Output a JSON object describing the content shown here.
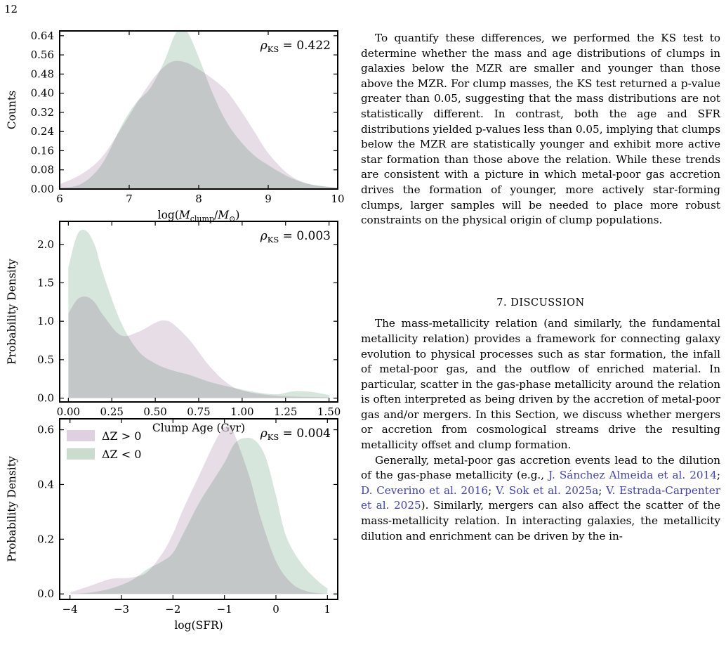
{
  "page": {
    "number": "12"
  },
  "colors": {
    "pos": "#d9c8d9",
    "neg": "#bfd6c6",
    "overlap": "#b6b8ac",
    "cite": "#3f3fbf"
  },
  "chart_data": [
    {
      "type": "area",
      "xlabel": "log(M_clump/M_⊙)",
      "ylabel": "Counts",
      "annotation": {
        "symbol": "ρ",
        "sub": "KS",
        "value": "= 0.422"
      },
      "xlim": [
        6,
        10
      ],
      "ylim": [
        0,
        0.66
      ],
      "xticks": [
        6,
        7,
        8,
        9,
        10
      ],
      "xtick_labels": [
        "6",
        "7",
        "8",
        "9",
        "10"
      ],
      "yticks": [
        0,
        0.08,
        0.16,
        0.24,
        0.32,
        0.4,
        0.48,
        0.56,
        0.64
      ],
      "ytick_labels": [
        "0.00",
        "0.08",
        "0.16",
        "0.24",
        "0.32",
        "0.40",
        "0.48",
        "0.56",
        "0.64"
      ],
      "series": [
        {
          "key": "pos",
          "x": [
            6.0,
            6.3,
            6.6,
            6.9,
            7.2,
            7.4,
            7.6,
            7.8,
            8.0,
            8.2,
            8.4,
            8.6,
            8.8,
            9.0,
            9.3,
            9.6,
            10.0
          ],
          "y": [
            0.02,
            0.06,
            0.13,
            0.26,
            0.4,
            0.48,
            0.53,
            0.53,
            0.5,
            0.46,
            0.41,
            0.33,
            0.24,
            0.15,
            0.06,
            0.02,
            0.005
          ]
        },
        {
          "key": "neg",
          "x": [
            6.0,
            6.3,
            6.6,
            6.9,
            7.1,
            7.3,
            7.5,
            7.65,
            7.75,
            7.85,
            8.0,
            8.2,
            8.4,
            8.6,
            8.8,
            9.0,
            9.3,
            9.6,
            10.0
          ],
          "y": [
            0.005,
            0.02,
            0.1,
            0.27,
            0.36,
            0.42,
            0.53,
            0.64,
            0.67,
            0.65,
            0.55,
            0.4,
            0.28,
            0.2,
            0.14,
            0.1,
            0.05,
            0.02,
            0.005
          ]
        }
      ]
    },
    {
      "type": "area",
      "xlabel": "Clump Age (Gyr)",
      "ylabel": "Probability Density",
      "annotation": {
        "symbol": "ρ",
        "sub": "KS",
        "value": "= 0.003"
      },
      "xlim": [
        -0.05,
        1.55
      ],
      "ylim": [
        -0.05,
        2.3
      ],
      "xticks": [
        0,
        0.25,
        0.5,
        0.75,
        1.0,
        1.25,
        1.5
      ],
      "xtick_labels": [
        "0.00",
        "0.25",
        "0.50",
        "0.75",
        "1.00",
        "1.25",
        "1.50"
      ],
      "yticks": [
        0,
        0.5,
        1.0,
        1.5,
        2.0
      ],
      "ytick_labels": [
        "0.0",
        "0.5",
        "1.0",
        "1.5",
        "2.0"
      ],
      "series": [
        {
          "key": "pos",
          "x": [
            0,
            0.05,
            0.1,
            0.15,
            0.2,
            0.3,
            0.4,
            0.5,
            0.55,
            0.6,
            0.7,
            0.8,
            0.9,
            1.0,
            1.2,
            1.5
          ],
          "y": [
            1.1,
            1.28,
            1.32,
            1.25,
            1.08,
            0.82,
            0.86,
            0.98,
            1.01,
            0.97,
            0.75,
            0.45,
            0.22,
            0.1,
            0.03,
            0.01
          ]
        },
        {
          "key": "neg",
          "x": [
            0,
            0.05,
            0.1,
            0.15,
            0.2,
            0.3,
            0.4,
            0.5,
            0.6,
            0.7,
            0.8,
            0.9,
            1.0,
            1.1,
            1.2,
            1.3,
            1.4,
            1.5
          ],
          "y": [
            1.7,
            2.12,
            2.18,
            2.0,
            1.62,
            1.0,
            0.62,
            0.45,
            0.36,
            0.3,
            0.22,
            0.16,
            0.11,
            0.07,
            0.05,
            0.09,
            0.08,
            0.04
          ]
        }
      ]
    },
    {
      "type": "area",
      "xlabel": "log(SFR)",
      "ylabel": "Probability Density",
      "annotation": {
        "symbol": "ρ",
        "sub": "KS",
        "value": "= 0.004"
      },
      "legend": {
        "position": "top-left",
        "entries": [
          {
            "key": "pos",
            "label": "ΔZ > 0"
          },
          {
            "key": "neg",
            "label": "ΔZ < 0"
          }
        ]
      },
      "xlim": [
        -4.2,
        1.2
      ],
      "ylim": [
        -0.02,
        0.64
      ],
      "xticks": [
        -4,
        -3,
        -2,
        -1,
        0,
        1
      ],
      "xtick_labels": [
        "−4",
        "−3",
        "−2",
        "−1",
        "0",
        "1"
      ],
      "yticks": [
        0,
        0.2,
        0.4,
        0.6
      ],
      "ytick_labels": [
        "0.0",
        "0.2",
        "0.4",
        "0.6"
      ],
      "series": [
        {
          "key": "pos",
          "x": [
            -4.0,
            -3.6,
            -3.2,
            -2.8,
            -2.5,
            -2.2,
            -2.0,
            -1.8,
            -1.5,
            -1.2,
            -1.0,
            -0.85,
            -0.7,
            -0.5,
            -0.3,
            0.0,
            0.3,
            0.6,
            1.0
          ],
          "y": [
            0.005,
            0.03,
            0.055,
            0.06,
            0.08,
            0.15,
            0.22,
            0.31,
            0.43,
            0.55,
            0.61,
            0.6,
            0.53,
            0.42,
            0.28,
            0.12,
            0.04,
            0.01,
            0.0
          ]
        },
        {
          "key": "neg",
          "x": [
            -4.0,
            -3.6,
            -3.2,
            -2.8,
            -2.5,
            -2.2,
            -2.0,
            -1.8,
            -1.5,
            -1.2,
            -1.0,
            -0.8,
            -0.6,
            -0.4,
            -0.2,
            0.0,
            0.2,
            0.5,
            0.8,
            1.0
          ],
          "y": [
            0.0,
            0.005,
            0.02,
            0.05,
            0.09,
            0.12,
            0.15,
            0.22,
            0.33,
            0.42,
            0.48,
            0.55,
            0.57,
            0.56,
            0.5,
            0.36,
            0.21,
            0.11,
            0.05,
            0.02
          ]
        }
      ]
    }
  ],
  "text": {
    "para1": "To quantify these differences, we performed the KS test to determine whether the mass and age distributions of clumps in galaxies below the MZR are smaller and younger than those above the MZR. For clump masses, the KS test returned a p-value greater than 0.05, suggesting that the mass distributions are not statistically different. In contrast, both the age and SFR distributions yielded p-values less than 0.05, implying that clumps below the MZR are statistically younger and exhibit more active star formation than those above the relation. While these trends are consistent with a picture in which metal-poor gas accretion drives the formation of younger, more actively star-forming clumps, larger samples will be needed to place more robust constraints on the physical origin of clump populations.",
    "heading": "7. DISCUSSION",
    "para2": "The mass-metallicity relation (and similarly, the fundamental metallicity relation) provides a framework for connecting galaxy evolution to physical processes such as star formation, the infall of metal-poor gas, and the outflow of enriched material. In particular, scatter in the gas-phase metallicity around the relation is often interpreted as being driven by the accretion of metal-poor gas and/or mergers. In this Section, we discuss whether mergers or accretion from cosmological streams drive the resulting metallicity offset and clump formation.",
    "para3_start": "Generally, metal-poor gas accretion events lead to the dilution of the gas-phase metallicity (e.g.,",
    "cite1": "J. Sánchez Almeida et al. 2014",
    "sep1": ";",
    "cite2": "D. Ceverino et al. 2016",
    "sep2": ";",
    "cite3": "V. Sok et al. 2025a",
    "sep3": ";",
    "cite4": "V. Estrada-Carpenter et al. 2025",
    "para3_end": "). Similarly, mergers can also affect the scatter of the mass-metallicity relation. In interacting galaxies, the metallicity dilution and enrichment can be driven by the in-"
  }
}
